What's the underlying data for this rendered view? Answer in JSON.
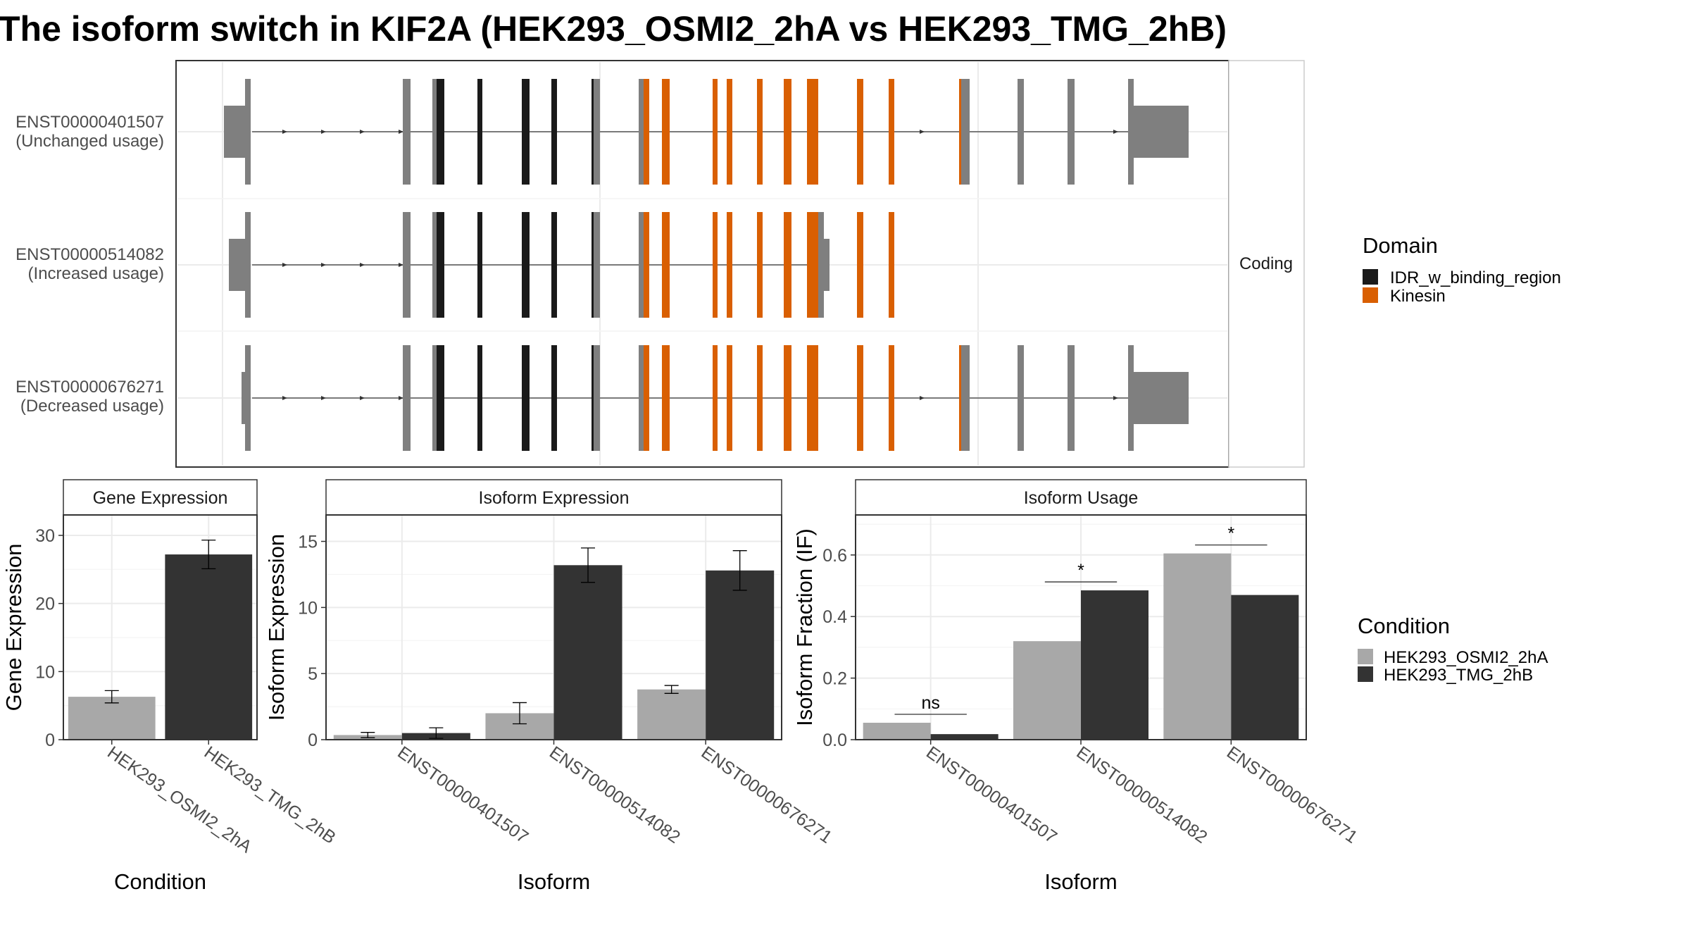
{
  "title": "The isoform switch in KIF2A (HEK293_OSMI2_2hA vs HEK293_TMG_2hB)",
  "colors": {
    "idr": "#1a1a1a",
    "kinesin": "#d95f02",
    "exon": "#7f7f7f",
    "cond_a": "#a8a8a8",
    "cond_b": "#333333",
    "grid": "#ebebeb"
  },
  "structure": {
    "facet_label": "Coding",
    "transcripts": [
      {
        "id": "ENST00000401507",
        "usage": "(Unchanged usage)"
      },
      {
        "id": "ENST00000514082",
        "usage": "(Increased usage)"
      },
      {
        "id": "ENST00000676271",
        "usage": "(Decreased usage)"
      }
    ],
    "legend": {
      "title": "Domain",
      "items": [
        {
          "label": "IDR_w_binding_region",
          "color": "#1a1a1a"
        },
        {
          "label": "Kinesin",
          "color": "#d95f02"
        }
      ]
    }
  },
  "condition_legend": {
    "title": "Condition",
    "items": [
      {
        "label": "HEK293_OSMI2_2hA",
        "color": "#a8a8a8"
      },
      {
        "label": "HEK293_TMG_2hB",
        "color": "#333333"
      }
    ]
  },
  "chart_data": [
    {
      "type": "bar",
      "title": "Gene Expression",
      "xlabel": "Condition",
      "ylabel": "Gene Expression",
      "ylim": [
        0,
        33
      ],
      "yticks": [
        "0",
        "10",
        "20",
        "30"
      ],
      "categories": [
        "HEK293_OSMI2_2hA",
        "HEK293_TMG_2hB"
      ],
      "values": [
        6.3,
        27.2
      ],
      "errors": [
        [
          5.4,
          7.2
        ],
        [
          25.1,
          29.3
        ]
      ]
    },
    {
      "type": "bar",
      "title": "Isoform Expression",
      "xlabel": "Isoform",
      "ylabel": "Isoform Expression",
      "ylim": [
        0,
        17
      ],
      "yticks": [
        "0",
        "5",
        "10",
        "15"
      ],
      "categories": [
        "ENST00000401507",
        "ENST00000514082",
        "ENST00000676271"
      ],
      "series": [
        {
          "name": "HEK293_OSMI2_2hA",
          "values": [
            0.35,
            2.0,
            3.8
          ],
          "errors": [
            [
              0.15,
              0.55
            ],
            [
              1.2,
              2.8
            ],
            [
              3.5,
              4.1
            ]
          ]
        },
        {
          "name": "HEK293_TMG_2hB",
          "values": [
            0.5,
            13.2,
            12.8
          ],
          "errors": [
            [
              0.1,
              0.9
            ],
            [
              11.9,
              14.5
            ],
            [
              11.3,
              14.3
            ]
          ]
        }
      ]
    },
    {
      "type": "bar",
      "title": "Isoform Usage",
      "xlabel": "Isoform",
      "ylabel": "Isoform Fraction (IF)",
      "ylim": [
        0,
        0.73
      ],
      "yticks": [
        "0.0",
        "0.2",
        "0.4",
        "0.6"
      ],
      "categories": [
        "ENST00000401507",
        "ENST00000514082",
        "ENST00000676271"
      ],
      "series": [
        {
          "name": "HEK293_OSMI2_2hA",
          "values": [
            0.055,
            0.32,
            0.605
          ]
        },
        {
          "name": "HEK293_TMG_2hB",
          "values": [
            0.018,
            0.485,
            0.47
          ]
        }
      ],
      "significance": [
        "ns",
        "*",
        "*"
      ]
    }
  ]
}
